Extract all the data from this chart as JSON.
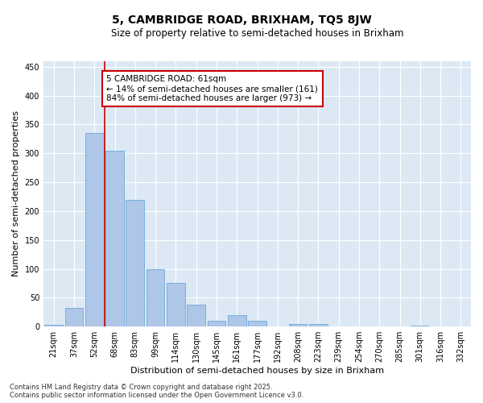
{
  "title": "5, CAMBRIDGE ROAD, BRIXHAM, TQ5 8JW",
  "subtitle": "Size of property relative to semi-detached houses in Brixham",
  "xlabel": "Distribution of semi-detached houses by size in Brixham",
  "ylabel": "Number of semi-detached properties",
  "categories": [
    "21sqm",
    "37sqm",
    "52sqm",
    "68sqm",
    "83sqm",
    "99sqm",
    "114sqm",
    "130sqm",
    "145sqm",
    "161sqm",
    "177sqm",
    "192sqm",
    "208sqm",
    "223sqm",
    "239sqm",
    "254sqm",
    "270sqm",
    "285sqm",
    "301sqm",
    "316sqm",
    "332sqm"
  ],
  "values": [
    3,
    32,
    335,
    305,
    220,
    100,
    75,
    38,
    10,
    20,
    10,
    0,
    5,
    5,
    0,
    0,
    0,
    0,
    1,
    0,
    0
  ],
  "bar_color": "#aec6e8",
  "bar_edgecolor": "#5a9fd4",
  "vline_color": "#cc0000",
  "vline_index": 2.5,
  "annotation_title": "5 CAMBRIDGE ROAD: 61sqm",
  "annotation_line1": "← 14% of semi-detached houses are smaller (161)",
  "annotation_line2": "84% of semi-detached houses are larger (973) →",
  "annotation_box_edgecolor": "#cc0000",
  "ylim": [
    0,
    460
  ],
  "yticks": [
    0,
    50,
    100,
    150,
    200,
    250,
    300,
    350,
    400,
    450
  ],
  "plot_bg_color": "#dce9f5",
  "footer_line1": "Contains HM Land Registry data © Crown copyright and database right 2025.",
  "footer_line2": "Contains public sector information licensed under the Open Government Licence v3.0.",
  "title_fontsize": 10,
  "subtitle_fontsize": 8.5,
  "axis_label_fontsize": 8,
  "tick_fontsize": 7,
  "annotation_fontsize": 7.5,
  "footer_fontsize": 6
}
